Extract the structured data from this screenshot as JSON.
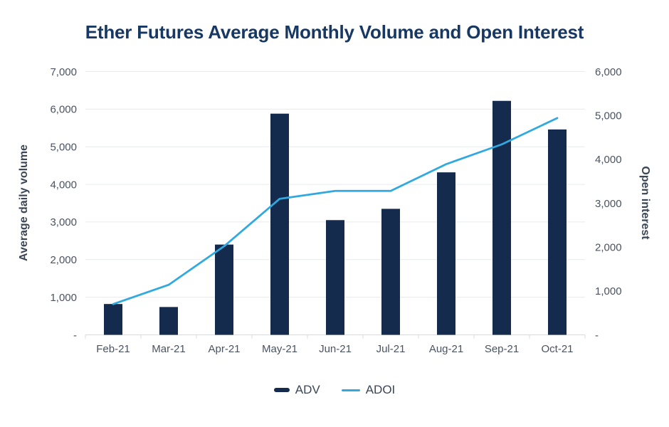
{
  "title": "Ether Futures Average Monthly Volume and Open Interest",
  "legend": [
    {
      "label": "ADV",
      "marker": "bar"
    },
    {
      "label": "ADOI",
      "marker": "line"
    }
  ],
  "colors": {
    "background": "#ffffff",
    "title": "#173862",
    "bar": "#152B4E",
    "line": "#2FA9E0",
    "tick_text": "#4A5361",
    "axis_title_text": "#3A4656",
    "grid": "#E9EAEC",
    "axis_line": "#D8DBDE"
  },
  "chart_data": {
    "type": "bar",
    "title": "Ether Futures Average Monthly Volume and Open Interest",
    "categories": [
      "Feb-21",
      "Mar-21",
      "Apr-21",
      "May-21",
      "Jun-21",
      "Jul-21",
      "Aug-21",
      "Sep-21",
      "Oct-21"
    ],
    "series": [
      {
        "name": "ADV",
        "type": "bar",
        "axis": "left",
        "values": [
          820,
          740,
          2400,
          5880,
          3050,
          3350,
          4320,
          6220,
          5460
        ]
      },
      {
        "name": "ADOI",
        "type": "line",
        "axis": "right",
        "values": [
          700,
          1140,
          2020,
          3100,
          3280,
          3280,
          3890,
          4340,
          4940
        ]
      }
    ],
    "left_axis": {
      "label": "Average daily volume",
      "min": 0,
      "max": 7000,
      "step": 1000,
      "zero_label": "-"
    },
    "right_axis": {
      "label": "Open interest",
      "min": 0,
      "max": 6000,
      "step": 1000,
      "zero_label": "-"
    },
    "grid": true,
    "legend_position": "bottom"
  }
}
